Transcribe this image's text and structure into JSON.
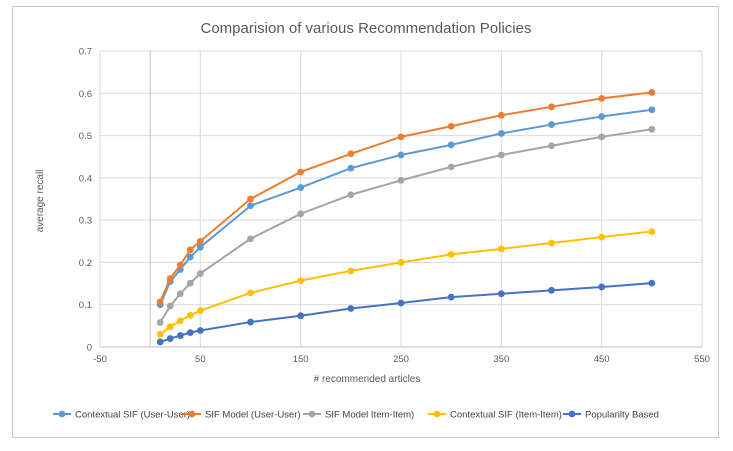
{
  "chart_data": {
    "type": "line",
    "title": "Comparision of various Recommendation Policies",
    "xlabel": "# recommended articles",
    "ylabel": "average recall",
    "xlim": [
      -50,
      550
    ],
    "ylim": [
      0,
      0.7
    ],
    "xticks": [
      "-50",
      "50",
      "150",
      "250",
      "350",
      "450",
      "550"
    ],
    "xtick_values": [
      -50,
      50,
      150,
      250,
      350,
      450,
      550
    ],
    "yticks": [
      "0",
      "0.1",
      "0.2",
      "0.3",
      "0.4",
      "0.5",
      "0.6",
      "0.7"
    ],
    "ytick_values": [
      0,
      0.1,
      0.2,
      0.3,
      0.4,
      0.5,
      0.6,
      0.7
    ],
    "grid": true,
    "legend_position": "bottom",
    "x": [
      10,
      20,
      30,
      40,
      50,
      100,
      150,
      200,
      250,
      300,
      350,
      400,
      450,
      500
    ],
    "series": [
      {
        "name": "Contextual SIF (User-User)",
        "color": "#5b9bd5",
        "values": [
          0.1,
          0.155,
          0.183,
          0.213,
          0.236,
          0.334,
          0.377,
          0.423,
          0.454,
          0.478,
          0.505,
          0.526,
          0.545,
          0.561
        ]
      },
      {
        "name": "SIF Model (User-User)",
        "color": "#ed7d31",
        "values": [
          0.107,
          0.162,
          0.194,
          0.23,
          0.25,
          0.35,
          0.414,
          0.457,
          0.497,
          0.522,
          0.548,
          0.568,
          0.588,
          0.602
        ]
      },
      {
        "name": "SIF Model Item-Item)",
        "color": "#a5a5a5",
        "values": [
          0.058,
          0.097,
          0.126,
          0.151,
          0.174,
          0.256,
          0.315,
          0.36,
          0.394,
          0.426,
          0.454,
          0.476,
          0.497,
          0.515
        ]
      },
      {
        "name": "Contextual SIF (Item-Item)",
        "color": "#ffc000",
        "values": [
          0.03,
          0.048,
          0.062,
          0.075,
          0.086,
          0.128,
          0.157,
          0.18,
          0.2,
          0.219,
          0.232,
          0.246,
          0.26,
          0.273
        ]
      },
      {
        "name": "Popularilty Based",
        "color": "#4472c4",
        "values": [
          0.012,
          0.02,
          0.027,
          0.034,
          0.039,
          0.059,
          0.074,
          0.091,
          0.104,
          0.118,
          0.126,
          0.134,
          0.142,
          0.151
        ]
      }
    ]
  }
}
